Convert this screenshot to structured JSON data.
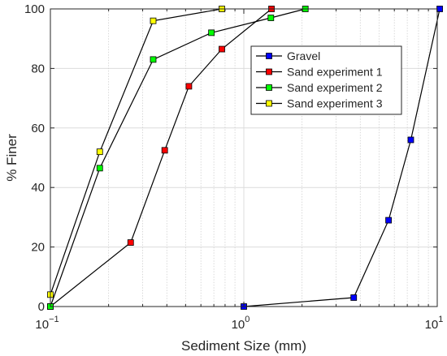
{
  "chart_data": {
    "type": "line",
    "title": "",
    "xlabel": "Sediment Size (mm)",
    "ylabel": "% Finer",
    "xscale": "log",
    "xlim": [
      0.1,
      10
    ],
    "ylim": [
      0,
      100
    ],
    "grid": "on (x major and minor, y major)",
    "legend_position": "top-right",
    "y_ticks": [
      {
        "value": 0,
        "label": "0"
      },
      {
        "value": 20,
        "label": "20"
      },
      {
        "value": 40,
        "label": "40"
      },
      {
        "value": 60,
        "label": "60"
      },
      {
        "value": 80,
        "label": "80"
      },
      {
        "value": 100,
        "label": "100"
      }
    ],
    "x_ticks": [
      {
        "value": 0.1,
        "base": "10",
        "exp": "−1"
      },
      {
        "value": 1,
        "base": "10",
        "exp": "0"
      },
      {
        "value": 10,
        "base": "10",
        "exp": "1"
      }
    ],
    "series": [
      {
        "name": "Gravel",
        "color": "#0000ff",
        "x": [
          1.0,
          3.7,
          5.6,
          7.3,
          10.3
        ],
        "y": [
          0,
          3,
          29,
          56,
          100
        ]
      },
      {
        "name": "Sand experiment 1",
        "color": "#ff0000",
        "x": [
          0.1,
          0.26,
          0.39,
          0.52,
          0.77,
          1.39
        ],
        "y": [
          0,
          21.5,
          52.5,
          74,
          86.5,
          100
        ]
      },
      {
        "name": "Sand experiment 2",
        "color": "#00ff00",
        "x": [
          0.1,
          0.18,
          0.34,
          0.68,
          1.38,
          2.08
        ],
        "y": [
          0,
          46.5,
          83,
          92,
          97,
          100
        ]
      },
      {
        "name": "Sand experiment 3",
        "color": "#ffff00",
        "x": [
          0.1,
          0.18,
          0.34,
          0.77
        ],
        "y": [
          4,
          52,
          96,
          100
        ]
      }
    ]
  }
}
